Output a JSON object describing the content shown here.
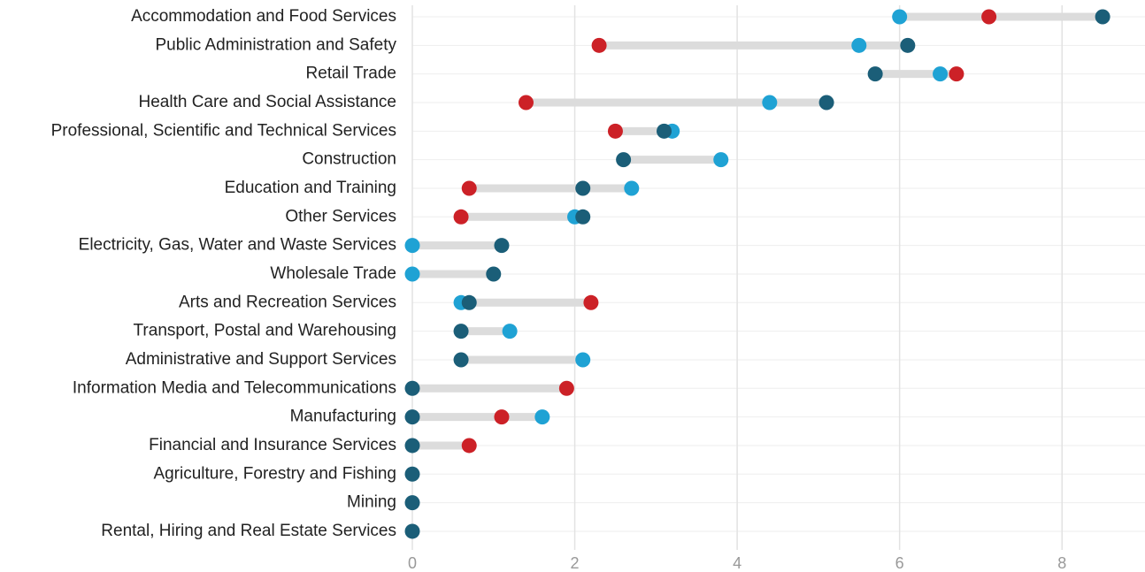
{
  "chart_data": {
    "type": "dumbbell",
    "categories": [
      "Accommodation and Food Services",
      "Public Administration and Safety",
      "Retail Trade",
      "Health Care and Social Assistance",
      "Professional, Scientific and Technical Services",
      "Construction",
      "Education and Training",
      "Other Services",
      "Electricity, Gas, Water and Waste Services",
      "Wholesale Trade",
      "Arts and Recreation Services",
      "Transport, Postal and Warehousing",
      "Administrative and Support Services",
      "Information Media and Telecommunications",
      "Manufacturing",
      "Financial and Insurance Services",
      "Agriculture, Forestry and Fishing",
      "Mining",
      "Rental, Hiring and Real Estate Services"
    ],
    "series": [
      {
        "color": "#cc2127",
        "values": [
          7.1,
          2.3,
          6.7,
          1.4,
          2.5,
          null,
          0.7,
          0.6,
          null,
          null,
          2.2,
          null,
          null,
          1.9,
          1.1,
          0.7,
          null,
          null,
          null
        ]
      },
      {
        "color": "#1fa2d4",
        "values": [
          6.0,
          5.5,
          6.5,
          4.4,
          3.2,
          3.8,
          2.7,
          2.0,
          0,
          0,
          0.6,
          1.2,
          2.1,
          null,
          1.6,
          null,
          null,
          null,
          null
        ]
      },
      {
        "color": "#1b5e78",
        "values": [
          8.5,
          6.1,
          5.7,
          5.1,
          3.1,
          2.6,
          2.1,
          2.1,
          1.1,
          1.0,
          0.7,
          0.6,
          0.6,
          0,
          0,
          0,
          0,
          0,
          0
        ]
      }
    ],
    "xlim": [
      0,
      9
    ],
    "xticks": [
      0,
      2,
      4,
      6,
      8
    ],
    "grid": true
  }
}
